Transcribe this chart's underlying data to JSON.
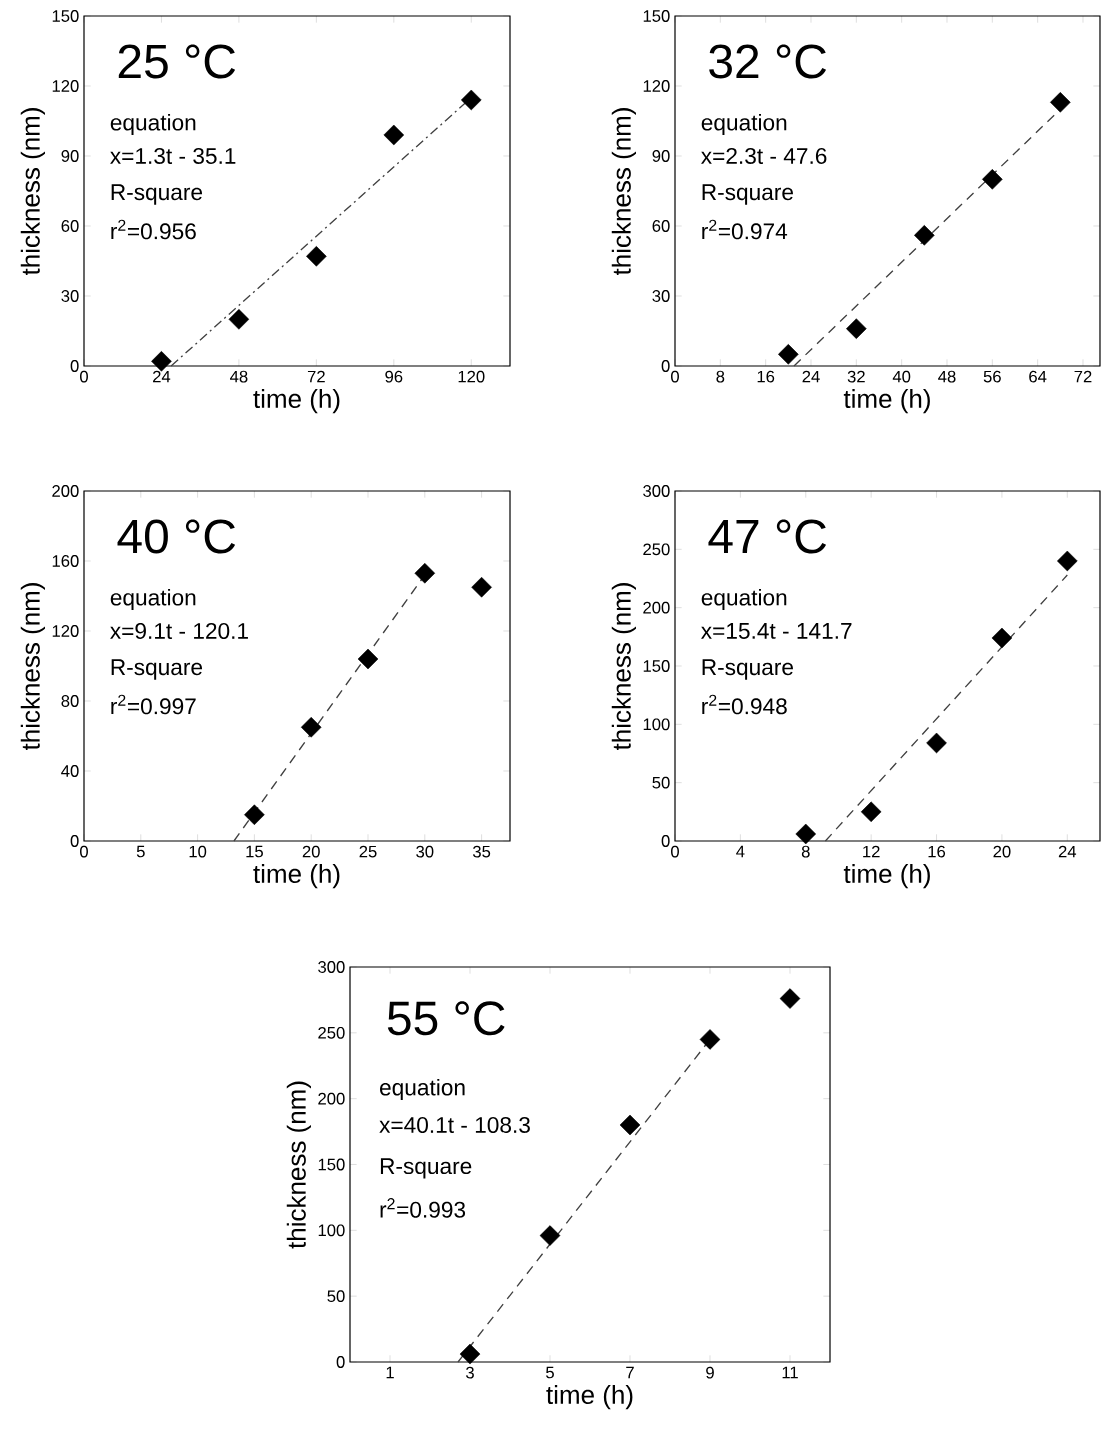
{
  "chart_data": [
    {
      "type": "scatter",
      "title": "25 °C",
      "xlabel": "time (h)",
      "ylabel": "thickness (nm)",
      "marker": "diamond",
      "xlim": [
        0,
        132
      ],
      "ylim": [
        0,
        150
      ],
      "xticks": [
        0,
        24,
        48,
        72,
        96,
        120
      ],
      "yticks": [
        0,
        30,
        60,
        90,
        120,
        150
      ],
      "annotations": [
        "equation",
        "x=1.3t - 35.1",
        "R-square",
        "r$^{2}$=0.956"
      ],
      "series": [
        {
          "color": "#000000",
          "x": [
            24,
            48,
            72,
            96,
            120
          ],
          "values": [
            2,
            20,
            47,
            99,
            114
          ]
        },
        {
          "type": "line",
          "color": "#404040",
          "line_style": "dashdot",
          "marker": "none",
          "x": [
            27,
            120
          ],
          "values": [
            0,
            115
          ]
        }
      ]
    },
    {
      "type": "scatter",
      "title": "32 °C",
      "xlabel": "time (h)",
      "ylabel": "thickness (nm)",
      "marker": "diamond",
      "xlim": [
        0,
        75
      ],
      "ylim": [
        0,
        150
      ],
      "xticks": [
        0,
        8,
        16,
        24,
        32,
        40,
        48,
        56,
        64,
        72
      ],
      "yticks": [
        0,
        30,
        60,
        90,
        120,
        150
      ],
      "annotations": [
        "equation",
        "x=2.3t - 47.6",
        "R-square",
        "r$^{2}$=0.974"
      ],
      "series": [
        {
          "color": "#000000",
          "x": [
            20,
            32,
            44,
            56,
            68
          ],
          "values": [
            5,
            16,
            56,
            80,
            113
          ]
        },
        {
          "type": "line",
          "color": "#404040",
          "line_style": "dashed",
          "marker": "none",
          "x": [
            21,
            68
          ],
          "values": [
            0,
            110
          ]
        }
      ]
    },
    {
      "type": "scatter",
      "title": "40 °C",
      "xlabel": "time (h)",
      "ylabel": "thickness (nm)",
      "marker": "diamond",
      "xlim": [
        0,
        37.5
      ],
      "ylim": [
        0,
        200
      ],
      "xticks": [
        0,
        5,
        10,
        15,
        20,
        25,
        30,
        35
      ],
      "yticks": [
        0,
        40,
        80,
        120,
        160,
        200
      ],
      "annotations": [
        "equation",
        "x=9.1t - 120.1",
        "R-square",
        "r$^{2}$=0.997"
      ],
      "series": [
        {
          "color": "#000000",
          "x": [
            15,
            20,
            25,
            30,
            35
          ],
          "values": [
            15,
            65,
            104,
            153,
            145
          ]
        },
        {
          "type": "line",
          "color": "#404040",
          "line_style": "dashed",
          "marker": "none",
          "x": [
            13.2,
            30
          ],
          "values": [
            0,
            152
          ]
        }
      ]
    },
    {
      "type": "scatter",
      "title": "47 °C",
      "xlabel": "time (h)",
      "ylabel": "thickness (nm)",
      "marker": "diamond",
      "xlim": [
        0,
        26
      ],
      "ylim": [
        0,
        300
      ],
      "xticks": [
        0,
        4,
        8,
        12,
        16,
        20,
        24
      ],
      "yticks": [
        0,
        50,
        100,
        150,
        200,
        250,
        300
      ],
      "annotations": [
        "equation",
        "x=15.4t - 141.7",
        "R-square",
        "r$^{2}$=0.948"
      ],
      "series": [
        {
          "color": "#000000",
          "x": [
            8,
            12,
            16,
            20,
            24
          ],
          "values": [
            6,
            25,
            84,
            174,
            240
          ]
        },
        {
          "type": "line",
          "color": "#404040",
          "line_style": "dashed",
          "marker": "none",
          "x": [
            9.2,
            24
          ],
          "values": [
            0,
            228
          ]
        }
      ]
    },
    {
      "type": "scatter",
      "title": "55 °C",
      "xlabel": "time (h)",
      "ylabel": "thickness (nm)",
      "marker": "diamond",
      "xlim": [
        0,
        12
      ],
      "ylim": [
        0,
        300
      ],
      "xticks": [
        1,
        3,
        5,
        7,
        9,
        11
      ],
      "yticks": [
        0,
        50,
        100,
        150,
        200,
        250,
        300
      ],
      "annotations": [
        "equation",
        "x=40.1t - 108.3",
        "R-square",
        "r$^{2}$=0.993"
      ],
      "series": [
        {
          "color": "#000000",
          "x": [
            3,
            5,
            7,
            9,
            11
          ],
          "values": [
            6,
            96,
            180,
            245,
            276
          ]
        },
        {
          "type": "line",
          "color": "#404040",
          "line_style": "dashed",
          "marker": "none",
          "x": [
            2.7,
            9
          ],
          "values": [
            0,
            245
          ]
        }
      ]
    }
  ]
}
